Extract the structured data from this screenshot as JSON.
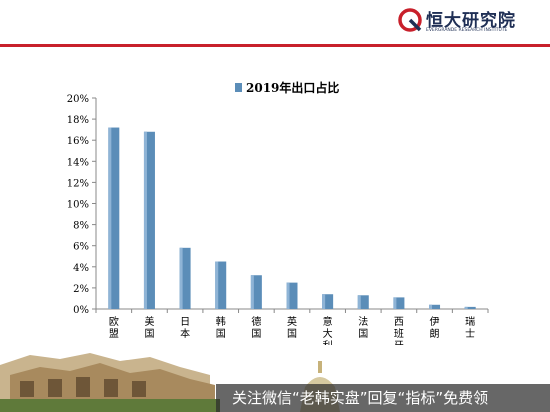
{
  "header": {
    "logo_cn": "恒大研究院",
    "logo_en": "EVERGRANDE RESEARCH INSTITUTE",
    "accent_color": "#c8202b",
    "text_color": "#1f2f55"
  },
  "chart_data": {
    "type": "bar",
    "legend_label": "2019年出口占比",
    "legend_position": "top-center",
    "categories": [
      "欧盟",
      "美国",
      "日本",
      "韩国",
      "德国",
      "英国",
      "意大利",
      "法国",
      "西班牙",
      "伊朗",
      "瑞士"
    ],
    "values": [
      17.2,
      16.8,
      5.8,
      4.5,
      3.2,
      2.5,
      1.4,
      1.3,
      1.1,
      0.4,
      0.2
    ],
    "yticks": [
      "0%",
      "2%",
      "4%",
      "6%",
      "8%",
      "10%",
      "12%",
      "14%",
      "16%",
      "18%",
      "20%"
    ],
    "ylim": [
      0,
      20
    ],
    "grid": false,
    "bar_color": "#5b8db8"
  },
  "banner": {
    "text": "关注微信“老韩实盘”回复“指标”免费领"
  }
}
